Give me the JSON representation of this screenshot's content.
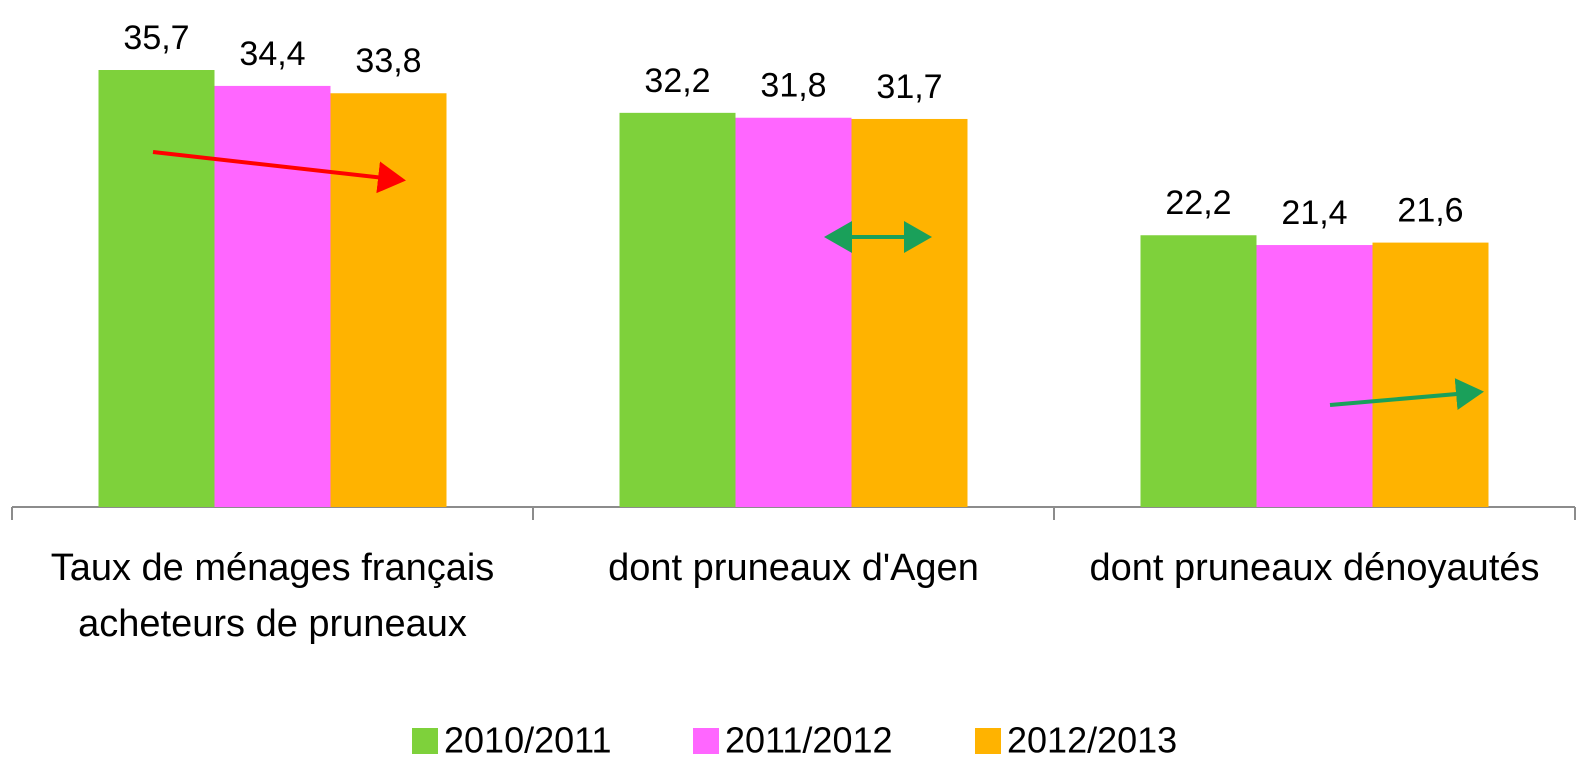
{
  "chart_data": {
    "type": "bar",
    "categories": [
      "Taux de ménages français acheteurs de pruneaux",
      "dont pruneaux d'Agen",
      "dont pruneaux dénoyautés"
    ],
    "series": [
      {
        "name": "2010/2011",
        "color": "#7ed13b",
        "values": [
          35.7,
          32.2,
          22.2
        ],
        "value_labels": [
          "35,7",
          "32,2",
          "22,2"
        ]
      },
      {
        "name": "2011/2012",
        "color": "#ff66ff",
        "values": [
          34.4,
          31.8,
          21.4
        ],
        "value_labels": [
          "34,4",
          "31,8",
          "21,4"
        ]
      },
      {
        "name": "2012/2013",
        "color": "#ffb300",
        "values": [
          33.8,
          31.7,
          21.6
        ],
        "value_labels": [
          "33,8",
          "31,7",
          "21,6"
        ]
      }
    ],
    "legend": "bottom"
  }
}
